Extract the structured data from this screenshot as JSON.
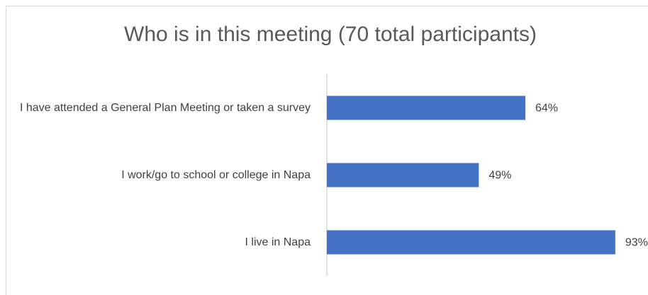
{
  "chart_data": {
    "type": "barh",
    "title": "Who is in this meeting (70 total participants)",
    "categories": [
      "I have attended a General Plan Meeting or taken a survey",
      "I work/go to school or college in Napa",
      "I live in Napa"
    ],
    "values": [
      64,
      49,
      93
    ],
    "value_labels": [
      "64%",
      "49%",
      "93%"
    ],
    "color": "#4472c4"
  }
}
